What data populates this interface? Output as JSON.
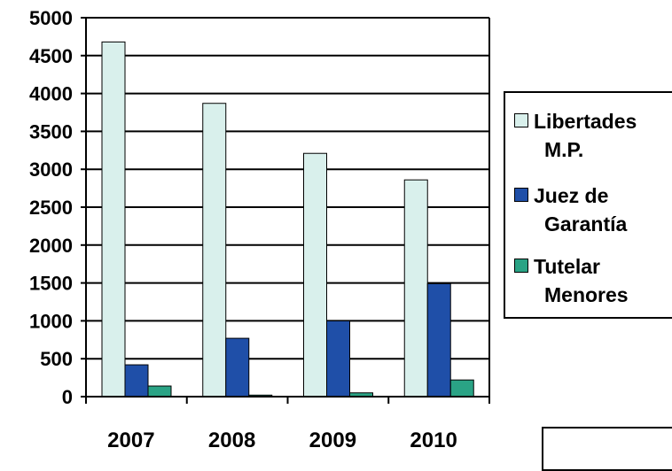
{
  "chart_data": {
    "type": "bar",
    "categories": [
      "2007",
      "2008",
      "2009",
      "2010"
    ],
    "series": [
      {
        "name": "Libertades M.P.",
        "values": [
          4680,
          3870,
          3210,
          2860
        ],
        "color": "#d9f0ec"
      },
      {
        "name": "Juez de Garantía",
        "values": [
          420,
          770,
          1000,
          1490
        ],
        "color": "#1f4fa8"
      },
      {
        "name": "Tutelar Menores",
        "values": [
          140,
          20,
          50,
          220
        ],
        "color": "#2aa385"
      }
    ],
    "ylim": [
      0,
      5000
    ],
    "yticks": [
      "5000",
      "4500",
      "4000",
      "3500",
      "3000",
      "2500",
      "2000",
      "1500",
      "1000",
      "500",
      "0"
    ],
    "grid": true,
    "legend_position": "right"
  },
  "legend": {
    "items": [
      {
        "line1": "Libertades",
        "line2": "M.P."
      },
      {
        "line1": "Juez de",
        "line2": "Garantía"
      },
      {
        "line1": "Tutelar",
        "line2": "Menores"
      }
    ]
  }
}
